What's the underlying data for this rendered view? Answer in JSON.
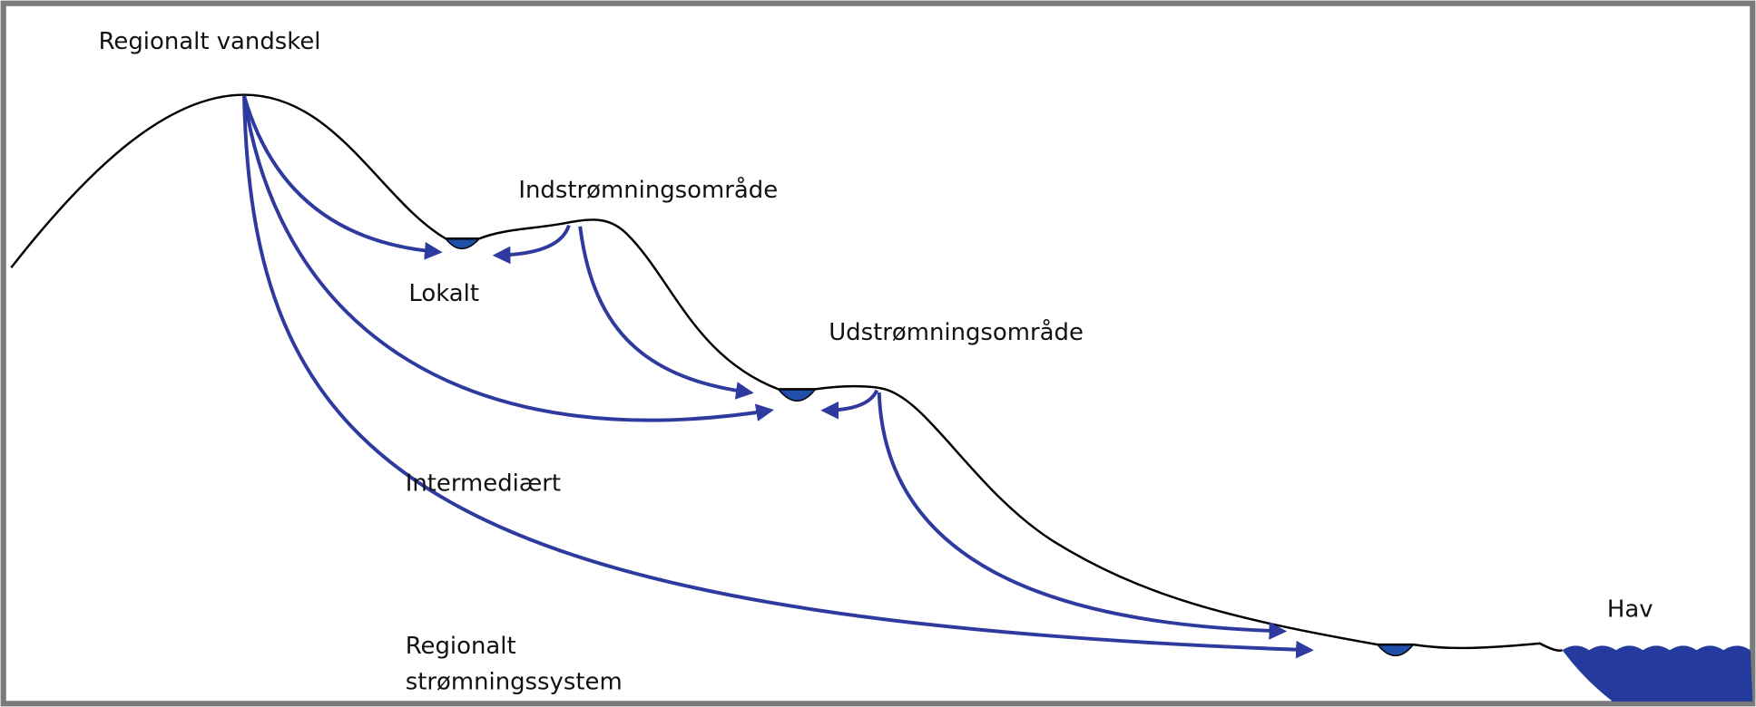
{
  "labels": {
    "divide": "Regionalt vandskel",
    "recharge": "Indstrømningsområde",
    "local": "Lokalt",
    "discharge": "Udstrømningsområde",
    "intermediate": "Intermediært",
    "sea": "Hav",
    "regional": [
      "Regionalt",
      "strømningssystem"
    ]
  }
}
